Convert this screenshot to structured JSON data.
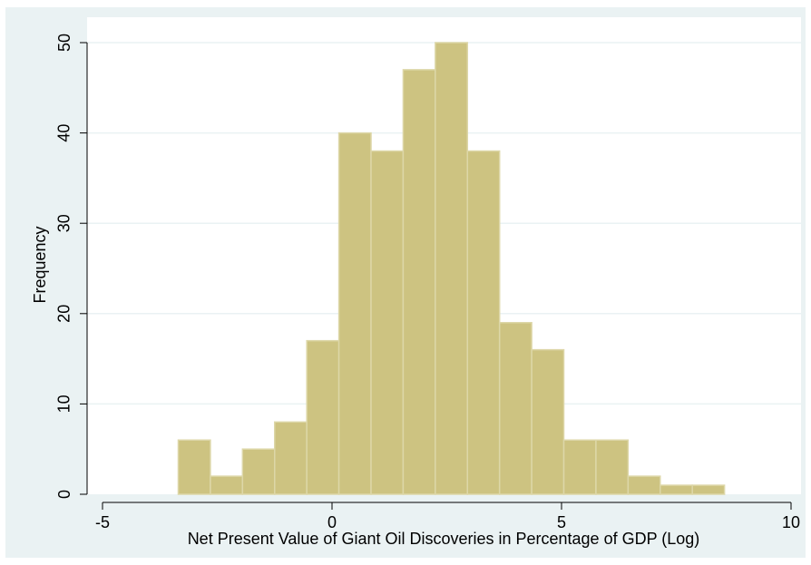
{
  "chart_data": {
    "type": "bar",
    "subtype": "histogram",
    "xlabel": "Net Present Value of Giant Oil Discoveries in Percentage of GDP (Log)",
    "ylabel": "Frequency",
    "xlim": [
      -5,
      10
    ],
    "ylim": [
      0,
      52
    ],
    "x_ticks": [
      -5,
      0,
      5,
      10
    ],
    "y_ticks": [
      0,
      10,
      20,
      30,
      40,
      50
    ],
    "bins": [
      {
        "start": -3.35,
        "end": -2.65,
        "value": 6
      },
      {
        "start": -2.65,
        "end": -1.95,
        "value": 2
      },
      {
        "start": -1.95,
        "end": -1.25,
        "value": 5
      },
      {
        "start": -1.25,
        "end": -0.55,
        "value": 8
      },
      {
        "start": -0.55,
        "end": 0.15,
        "value": 17
      },
      {
        "start": 0.15,
        "end": 0.85,
        "value": 40
      },
      {
        "start": 0.85,
        "end": 1.55,
        "value": 38
      },
      {
        "start": 1.55,
        "end": 2.25,
        "value": 47
      },
      {
        "start": 2.25,
        "end": 2.95,
        "value": 50
      },
      {
        "start": 2.95,
        "end": 3.65,
        "value": 38
      },
      {
        "start": 3.65,
        "end": 4.35,
        "value": 19
      },
      {
        "start": 4.35,
        "end": 5.05,
        "value": 16
      },
      {
        "start": 5.05,
        "end": 5.75,
        "value": 6
      },
      {
        "start": 5.75,
        "end": 6.45,
        "value": 6
      },
      {
        "start": 6.45,
        "end": 7.15,
        "value": 2
      },
      {
        "start": 7.15,
        "end": 7.85,
        "value": 1
      },
      {
        "start": 7.85,
        "end": 8.55,
        "value": 1
      }
    ],
    "grid": true,
    "legend": "none",
    "colors": {
      "bar_fill": "#cdc381",
      "bar_stroke": "#ddd7a8",
      "background": "#eaf2f3",
      "plot_background": "#ffffff",
      "grid": "#eaf2f3"
    }
  }
}
